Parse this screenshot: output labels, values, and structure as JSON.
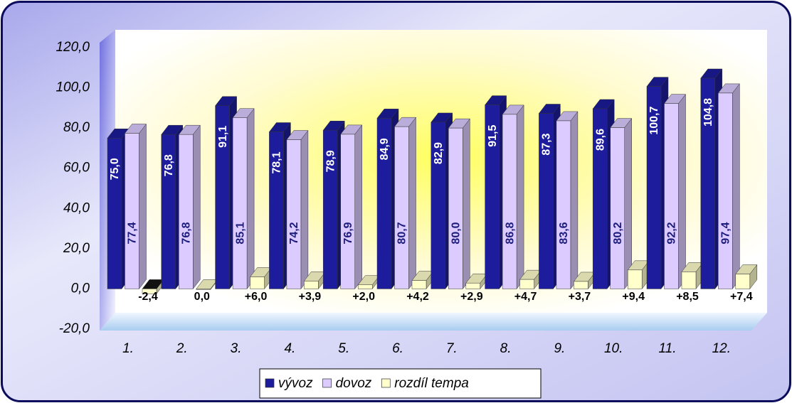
{
  "chart_data": {
    "type": "bar3d",
    "categories": [
      "1.",
      "2.",
      "3.",
      "4.",
      "5.",
      "6.",
      "7.",
      "8.",
      "9.",
      "10.",
      "11.",
      "12."
    ],
    "series": [
      {
        "name": "vývoz",
        "color": "#1c1c9c",
        "values": [
          75.0,
          76.8,
          91.1,
          78.1,
          78.9,
          84.9,
          82.9,
          91.5,
          87.3,
          89.6,
          100.7,
          104.8
        ],
        "value_labels": [
          "75,0",
          "76,8",
          "91,1",
          "78,1",
          "78,9",
          "84,9",
          "82,9",
          "91,5",
          "87,3",
          "89,6",
          "100,7",
          "104,8"
        ]
      },
      {
        "name": "dovoz",
        "color": "#dccbff",
        "values": [
          77.4,
          76.8,
          85.1,
          74.2,
          76.9,
          80.7,
          80.0,
          86.8,
          83.6,
          80.2,
          92.2,
          97.4
        ],
        "value_labels": [
          "77,4",
          "76,8",
          "85,1",
          "74,2",
          "76,9",
          "80,7",
          "80,0",
          "86,8",
          "83,6",
          "80,2",
          "92,2",
          "97,4"
        ]
      },
      {
        "name": "rozdíl tempa",
        "color": "#ffffcc",
        "values": [
          -2.4,
          0.0,
          6.0,
          3.9,
          2.0,
          4.2,
          2.9,
          4.7,
          3.7,
          9.4,
          8.5,
          7.4
        ],
        "value_labels": [
          "-2,4",
          "0,0",
          "+6,0",
          "+3,9",
          "+2,0",
          "+4,2",
          "+2,9",
          "+4,7",
          "+3,7",
          "+9,4",
          "+8,5",
          "+7,4"
        ]
      }
    ],
    "ylim": [
      -20,
      120
    ],
    "yticks": [
      {
        "value": -20,
        "label": "-20,0"
      },
      {
        "value": 0,
        "label": "0,0"
      },
      {
        "value": 20,
        "label": "20,0"
      },
      {
        "value": 40,
        "label": "40,0"
      },
      {
        "value": 60,
        "label": "60,0"
      },
      {
        "value": 80,
        "label": "80,0"
      },
      {
        "value": 100,
        "label": "100,0"
      },
      {
        "value": 120,
        "label": "120,0"
      }
    ],
    "grid": false,
    "legend": "bottom"
  }
}
